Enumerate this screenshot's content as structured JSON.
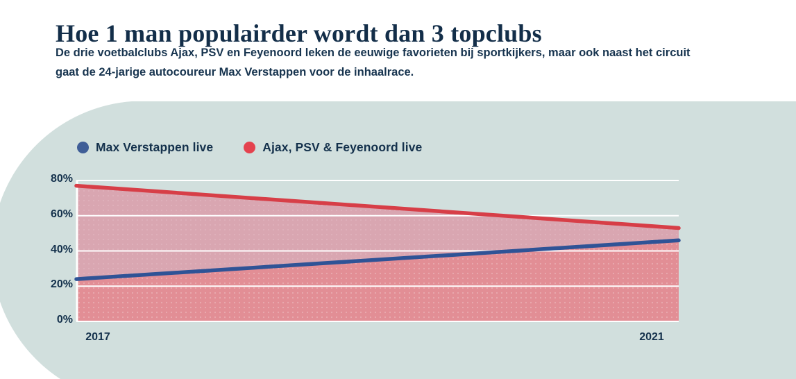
{
  "page": {
    "background_color": "#ffffff",
    "blob_color": "#d1dfdd"
  },
  "header": {
    "title": "Hoe 1 man populairder wordt dan 3 topclubs",
    "subtitle_lines": [
      "De drie voetbalclubs Ajax, PSV en Feyenoord leken de eeuwige favorieten bij sportkijkers, maar ook naast het circuit",
      "gaat de 24-jarige autocoureur Max Verstappen voor de inhaalrace."
    ]
  },
  "legend": [
    {
      "label": "Max Verstappen live",
      "color": "#3f5e97"
    },
    {
      "label": "Ajax, PSV & Feyenoord live",
      "color": "#e4424e"
    }
  ],
  "chart_data": {
    "type": "area",
    "x": [
      2017,
      2021
    ],
    "x_tick_labels": [
      "2017",
      "2021"
    ],
    "series": [
      {
        "name": "Max Verstappen live",
        "values": [
          24,
          46
        ],
        "color": "#2f5396",
        "fill": "#e28e95"
      },
      {
        "name": "Ajax, PSV & Feyenoord live",
        "values": [
          77,
          53
        ],
        "color": "#d73e47",
        "fill": "#d9a6b1"
      }
    ],
    "ylim": [
      0,
      80
    ],
    "yticks": [
      0,
      20,
      40,
      60,
      80
    ],
    "ytick_suffix": "%",
    "grid": true,
    "gridline_color": "#ffffff",
    "legend_position": "top"
  }
}
